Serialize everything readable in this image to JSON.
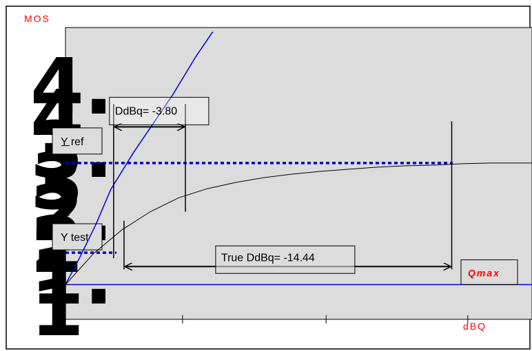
{
  "chart_data": {
    "type": "line",
    "ylabel": "MOS",
    "xlabel": "dBQ",
    "grid": false,
    "series": [
      {
        "kind": "line",
        "color": "#0000cc",
        "x": [
          0,
          0.7,
          1.6,
          2.4,
          3.6,
          4.6,
          5.7,
          6.9,
          7.8
        ],
        "y": [
          1.0,
          1.36,
          1.86,
          2.37,
          2.9,
          3.3,
          3.74,
          4.28,
          4.64
        ]
      },
      {
        "kind": "line",
        "color": "#000000",
        "x": [
          0,
          1.5,
          3.0,
          4.5,
          6.0,
          7.5,
          9.0,
          10.5,
          12.0,
          13.5,
          15.0,
          16.5,
          18.0,
          19.5,
          21.0,
          22.5,
          24.0,
          24.7
        ],
        "y": [
          1.0,
          1.45,
          1.79,
          2.05,
          2.25,
          2.38,
          2.47,
          2.54,
          2.59,
          2.63,
          2.66,
          2.69,
          2.71,
          2.72,
          2.74,
          2.75,
          2.75,
          2.75
        ]
      }
    ],
    "reference_lines": [
      {
        "label": "Y ref",
        "y": 2.75,
        "x_start": 0,
        "x_end": 20.5,
        "color": "#0000cc",
        "style": "dotted"
      },
      {
        "label": "Y test",
        "y": 1.46,
        "x_start": 0,
        "x_end": 2.7,
        "color": "#0000cc",
        "style": "dotted"
      },
      {
        "label": "Qmax",
        "y": 1.0,
        "x_start": 0,
        "x_end": 24.7,
        "color": "#0000cc",
        "style": "solid"
      }
    ],
    "markers": [
      {
        "x": 2.55,
        "y_start": 3.6,
        "y_end": 1.38
      },
      {
        "x": 3.1,
        "y_start": 1.92,
        "y_end": 1.22
      },
      {
        "x": 6.35,
        "y_start": 3.6,
        "y_end": 2.05
      },
      {
        "x": 20.45,
        "y_start": 3.35,
        "y_end": 1.22
      }
    ],
    "annotations": [
      {
        "label": "DdBq= -3.80",
        "x1": 2.55,
        "x2": 6.35,
        "y": 3.27
      },
      {
        "label": "True DdBq= -14.44",
        "x1": 3.1,
        "x2": 20.45,
        "y": 1.26
      }
    ],
    "xlim": [
      0,
      24.7
    ],
    "ylim": [
      0.5,
      4.7
    ],
    "yticks": [
      1,
      1.5,
      2,
      2.5,
      3,
      3.5,
      4
    ],
    "xticks": [
      6.2,
      13.8,
      21.3
    ],
    "left_glyphs": [
      "4.",
      "4",
      "3.",
      "3",
      "2.",
      "2",
      "1.",
      "1"
    ]
  }
}
